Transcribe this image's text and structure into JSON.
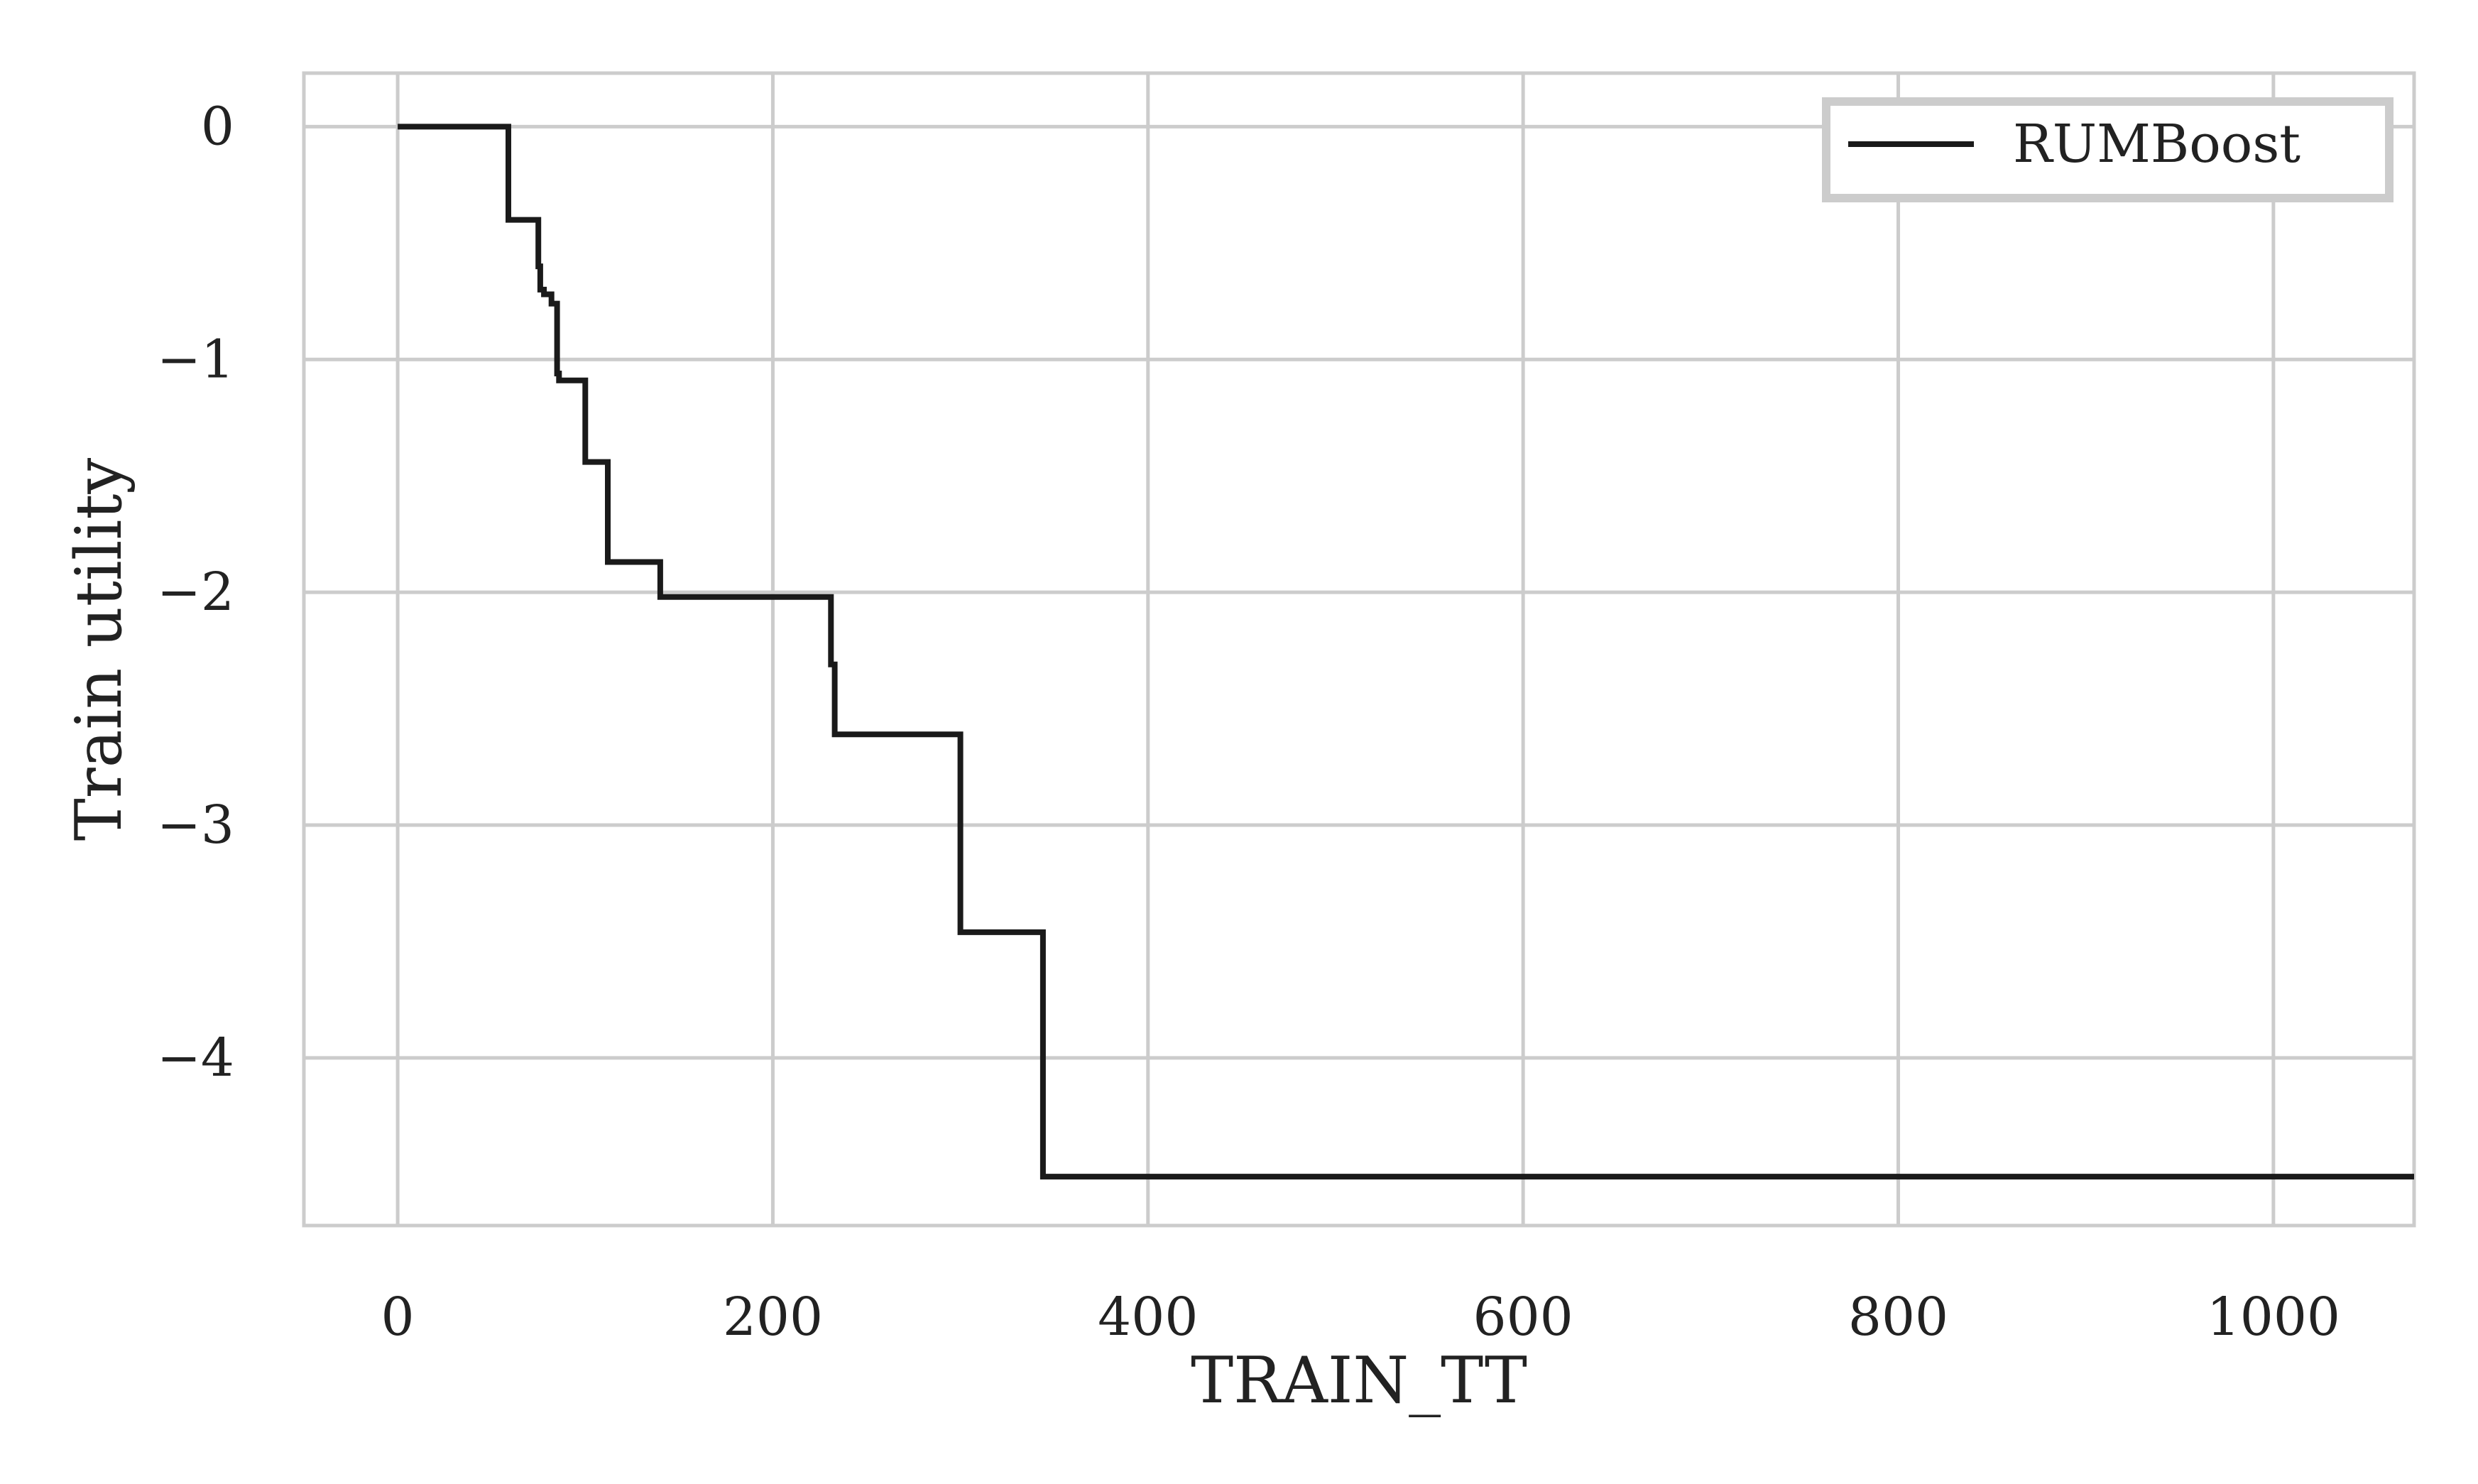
{
  "chart_data": {
    "type": "line",
    "step": true,
    "xlabel": "TRAIN_TT",
    "ylabel": "Train utility",
    "xlim": [
      -50,
      1075
    ],
    "ylim": [
      -4.72,
      0.23
    ],
    "xticks": [
      0,
      200,
      400,
      600,
      800,
      1000
    ],
    "xtick_labels": [
      "0",
      "200",
      "400",
      "600",
      "800",
      "1000"
    ],
    "yticks": [
      0,
      -1,
      -2,
      -3,
      -4
    ],
    "ytick_labels": [
      "0",
      "−1",
      "−2",
      "−3",
      "−4"
    ],
    "grid": true,
    "legend_position": "top-right",
    "line_color": "#1a1a1a",
    "grid_color": "#cccccc",
    "series": [
      {
        "name": "RUMBoost",
        "x": [
          0,
          59,
          59,
          75,
          75,
          76,
          76,
          78,
          78,
          82,
          82,
          85,
          85,
          86,
          86,
          100,
          100,
          112,
          112,
          140,
          140,
          231,
          231,
          233,
          233,
          300,
          300,
          344,
          344,
          1075
        ],
        "y": [
          0,
          0,
          -0.4,
          -0.4,
          -0.6,
          -0.6,
          -0.7,
          -0.7,
          -0.72,
          -0.72,
          -0.76,
          -0.76,
          -1.06,
          -1.06,
          -1.09,
          -1.09,
          -1.44,
          -1.44,
          -1.87,
          -1.87,
          -2.02,
          -2.02,
          -2.31,
          -2.31,
          -2.61,
          -2.61,
          -3.46,
          -3.46,
          -4.51,
          -4.51
        ]
      }
    ]
  }
}
